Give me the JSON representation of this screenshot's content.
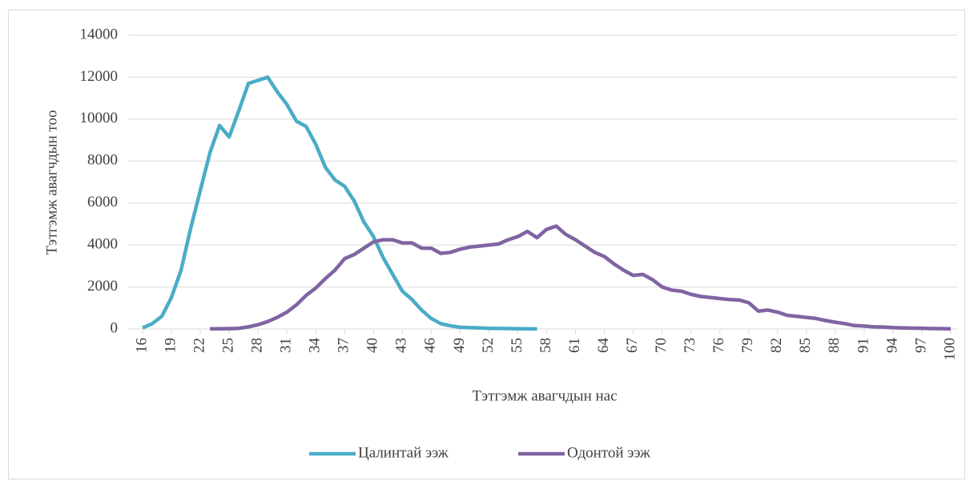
{
  "chart_data": {
    "type": "line",
    "xlabel": "Тэтгэмж авагчдын нас",
    "ylabel": "Тэтгэмж авагчдын тоо",
    "x": [
      16,
      17,
      18,
      19,
      20,
      21,
      22,
      23,
      24,
      25,
      26,
      27,
      28,
      29,
      30,
      31,
      32,
      33,
      34,
      35,
      36,
      37,
      38,
      39,
      40,
      41,
      42,
      43,
      44,
      45,
      46,
      47,
      48,
      49,
      50,
      51,
      52,
      53,
      54,
      55,
      56,
      57,
      58,
      59,
      60,
      61,
      62,
      63,
      64,
      65,
      66,
      67,
      68,
      69,
      70,
      71,
      72,
      73,
      74,
      75,
      76,
      77,
      78,
      79,
      80,
      81,
      82,
      83,
      84,
      85,
      86,
      87,
      88,
      89,
      90,
      91,
      92,
      93,
      94,
      95,
      96,
      97,
      98,
      99,
      100
    ],
    "xlim": [
      16,
      100
    ],
    "xticks": [
      16,
      19,
      22,
      25,
      28,
      31,
      34,
      37,
      40,
      43,
      46,
      49,
      52,
      55,
      58,
      61,
      64,
      67,
      70,
      73,
      76,
      79,
      82,
      85,
      88,
      91,
      94,
      97,
      100
    ],
    "ylim": [
      0,
      14000
    ],
    "yticks": [
      0,
      2000,
      4000,
      6000,
      8000,
      10000,
      12000,
      14000
    ],
    "grid": true,
    "legend": "bottom",
    "series": [
      {
        "name": "Цалинтай ээж",
        "color": "#4bacc6",
        "values": [
          50,
          250,
          600,
          1500,
          2800,
          4800,
          6600,
          8400,
          9700,
          9150,
          10400,
          11700,
          11850,
          12000,
          11300,
          10700,
          9900,
          9650,
          8800,
          7700,
          7100,
          6800,
          6100,
          5100,
          4400,
          3400,
          2600,
          1800,
          1400,
          900,
          500,
          250,
          150,
          80,
          60,
          50,
          30,
          25,
          20,
          10,
          5,
          5,
          null,
          null,
          null,
          null,
          null,
          null,
          null,
          null,
          null,
          null,
          null,
          null,
          null,
          null,
          null,
          null,
          null,
          null,
          null,
          null,
          null,
          null,
          null,
          null,
          null,
          null,
          null,
          null,
          null,
          null,
          null,
          null,
          null,
          null,
          null,
          null,
          null,
          null,
          null,
          null,
          null,
          null,
          null
        ]
      },
      {
        "name": "Одонтой ээж",
        "color": "#8064a2",
        "values": [
          null,
          null,
          null,
          null,
          null,
          null,
          null,
          5,
          10,
          15,
          30,
          100,
          200,
          350,
          550,
          800,
          1150,
          1600,
          1950,
          2400,
          2800,
          3350,
          3550,
          3850,
          4150,
          4250,
          4250,
          4100,
          4100,
          3850,
          3850,
          3600,
          3650,
          3800,
          3900,
          3950,
          4000,
          4050,
          4250,
          4400,
          4650,
          4350,
          4750,
          4900,
          4500,
          4250,
          3950,
          3650,
          3450,
          3100,
          2800,
          2550,
          2600,
          2350,
          2000,
          1850,
          1800,
          1650,
          1550,
          1500,
          1450,
          1400,
          1380,
          1250,
          850,
          900,
          800,
          650,
          600,
          550,
          500,
          400,
          320,
          250,
          160,
          140,
          100,
          90,
          60,
          50,
          40,
          30,
          20,
          15,
          5
        ]
      }
    ]
  }
}
